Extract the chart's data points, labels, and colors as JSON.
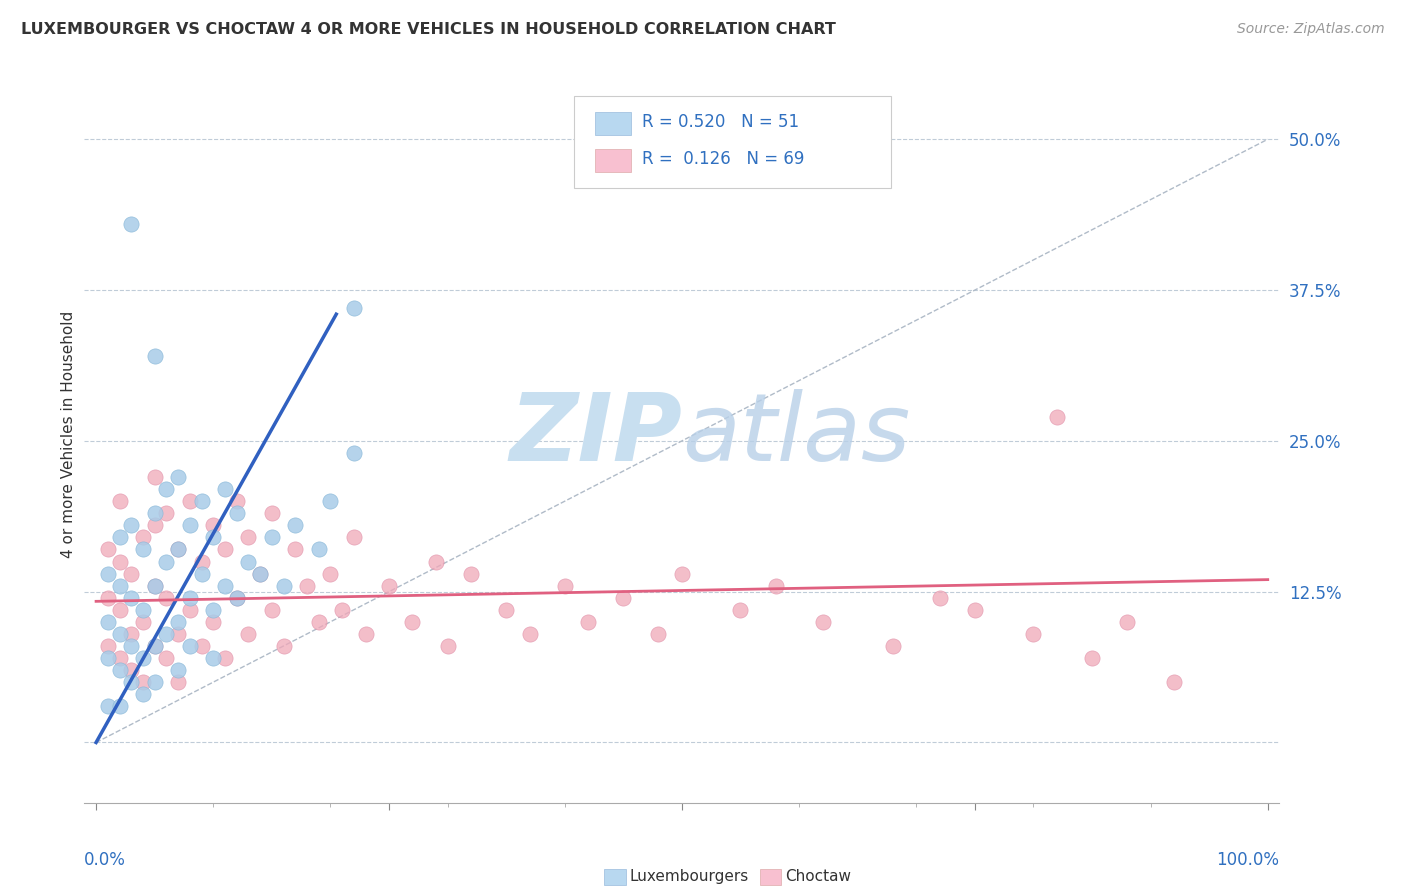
{
  "title": "LUXEMBOURGER VS CHOCTAW 4 OR MORE VEHICLES IN HOUSEHOLD CORRELATION CHART",
  "source_text": "Source: ZipAtlas.com",
  "ylabel": "4 or more Vehicles in Household",
  "ytick_labels": [
    "",
    "12.5%",
    "25.0%",
    "37.5%",
    "50.0%"
  ],
  "ytick_values": [
    0.0,
    0.125,
    0.25,
    0.375,
    0.5
  ],
  "xlim": [
    -0.01,
    1.01
  ],
  "ylim": [
    -0.05,
    0.56
  ],
  "color_blue": "#a8cce8",
  "color_pink": "#f0a8b8",
  "color_blue_line": "#3060c0",
  "color_pink_line": "#e06080",
  "color_legend_blue_fill": "#b8d8f0",
  "color_legend_pink_fill": "#f8c0d0",
  "watermark_zip_color": "#c8dff0",
  "watermark_atlas_color": "#b8d0e8",
  "grid_color": "#c0ccd8",
  "diag_line_color": "#b0bbc8",
  "blue_line_x": [
    0.0,
    0.205
  ],
  "blue_line_y": [
    0.0,
    0.355
  ],
  "pink_line_x": [
    0.0,
    1.0
  ],
  "pink_line_y": [
    0.117,
    0.135
  ],
  "diag_line_x": [
    0.0,
    1.0
  ],
  "diag_line_y": [
    0.0,
    0.5
  ]
}
